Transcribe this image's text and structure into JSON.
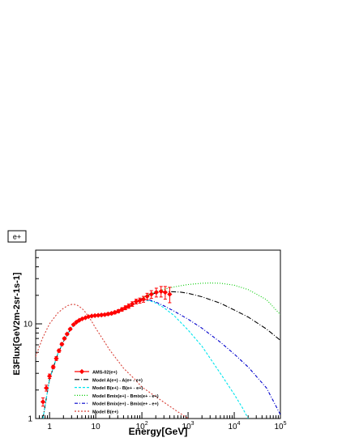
{
  "chart_data": {
    "type": "line",
    "title": "e+",
    "xlabel": "Energy[GeV]",
    "ylabel": "E3Flux[GeV2m-2sr-1s-1]",
    "xscale": "log",
    "yscale": "log",
    "xlim": [
      0.5,
      100000
    ],
    "ylim": [
      1,
      60
    ],
    "grid": false,
    "legend_position": "bottom-center",
    "x_ticks": [
      "1",
      "10",
      "10^2",
      "10^3",
      "10^4",
      "10^5"
    ],
    "y_ticks": [
      "1",
      "10"
    ],
    "colors": {
      "data": "#ff0000",
      "model_a": "#000000",
      "model_b": "#00e5ee",
      "model_bmix": "#00cc00",
      "model_bmix_ee": "#0000cc",
      "model_b_epos": "#d9433a"
    },
    "series": [
      {
        "name": "AMS-02(e+)",
        "kind": "data",
        "x": [
          0.72,
          0.85,
          1.0,
          1.2,
          1.4,
          1.6,
          1.85,
          2.1,
          2.4,
          2.8,
          3.3,
          3.8,
          4.4,
          5.1,
          6.0,
          7.0,
          8.2,
          9.6,
          11.3,
          13.3,
          15.7,
          18.5,
          22.0,
          26.0,
          31.0,
          37.0,
          44.0,
          52.0,
          62.0,
          75.0,
          90.0,
          108.0,
          130.0,
          160.0,
          205.0,
          260.0,
          320.0,
          400.0
        ],
        "y": [
          1.5,
          2.1,
          2.8,
          3.5,
          4.3,
          5.2,
          6.1,
          7.0,
          7.8,
          8.8,
          9.8,
          10.4,
          10.9,
          11.3,
          11.6,
          11.9,
          12.1,
          12.2,
          12.3,
          12.4,
          12.5,
          12.7,
          12.9,
          13.2,
          13.6,
          14.2,
          14.8,
          15.4,
          16.2,
          17.2,
          17.6,
          18.2,
          19.5,
          20.5,
          21.5,
          22.0,
          21.5,
          20.5
        ],
        "yerr": [
          0.15,
          0.15,
          0.15,
          0.15,
          0.2,
          0.2,
          0.2,
          0.2,
          0.2,
          0.2,
          0.2,
          0.2,
          0.2,
          0.2,
          0.2,
          0.2,
          0.2,
          0.25,
          0.25,
          0.3,
          0.3,
          0.35,
          0.4,
          0.45,
          0.5,
          0.6,
          0.7,
          0.8,
          0.9,
          1.0,
          1.1,
          1.3,
          1.5,
          1.9,
          2.3,
          2.8,
          3.3,
          3.8
        ]
      },
      {
        "name": "Model A(e+) - A(e+ - e+)",
        "kind": "line",
        "dash": "dashdot",
        "x": [
          0.72,
          1.0,
          1.5,
          2.0,
          3.0,
          4.0,
          6.0,
          10.0,
          20.0,
          40.0,
          70.0,
          100.0,
          150.0,
          250.0,
          400.0,
          700.0,
          1000.0,
          2000.0,
          5000.0,
          10000.0,
          20000.0,
          50000.0,
          100000.0
        ],
        "y": [
          1.0,
          2.6,
          4.8,
          6.5,
          9.2,
          10.6,
          11.7,
          12.3,
          12.7,
          14.0,
          16.3,
          18.5,
          20.5,
          21.6,
          21.9,
          21.6,
          21.0,
          19.3,
          16.5,
          14.0,
          11.8,
          8.8,
          6.7
        ]
      },
      {
        "name": "Model B(e+) - B(e+ - e+)",
        "kind": "line",
        "dash": "dash",
        "x": [
          0.72,
          1.0,
          1.5,
          2.0,
          3.0,
          4.0,
          6.0,
          10.0,
          20.0,
          40.0,
          70.0,
          100.0,
          150.0,
          200.0,
          300.0,
          500.0,
          1000.0,
          2000.0,
          5000.0,
          10000.0,
          15000.0,
          20000.0
        ],
        "y": [
          1.0,
          2.6,
          4.8,
          6.5,
          9.2,
          10.6,
          11.7,
          12.3,
          12.7,
          14.0,
          16.3,
          17.8,
          17.5,
          16.6,
          14.8,
          12.2,
          8.6,
          5.8,
          3.0,
          1.8,
          1.3,
          1.0
        ]
      },
      {
        "name": "Model Bmix(e+) - Bmix(e+ - e+)",
        "kind": "line",
        "dash": "dot",
        "x": [
          100.0,
          150.0,
          250.0,
          400.0,
          700.0,
          1000.0,
          2000.0,
          3000.0,
          5000.0,
          10000.0,
          20000.0,
          50000.0,
          100000.0
        ],
        "y": [
          18.5,
          20.7,
          22.5,
          24.0,
          25.3,
          26.0,
          26.8,
          27.0,
          26.8,
          25.6,
          23.0,
          18.0,
          12.5
        ]
      },
      {
        "name": "Model Bmix(e+) - Bmix(e+ - e+)",
        "kind": "line",
        "dash": "dashdot2",
        "x": [
          100.0,
          150.0,
          200.0,
          300.0,
          500.0,
          1000.0,
          2000.0,
          5000.0,
          10000.0,
          20000.0,
          50000.0,
          100000.0
        ],
        "y": [
          17.8,
          17.8,
          17.0,
          15.5,
          13.6,
          11.2,
          9.0,
          6.4,
          4.8,
          3.5,
          2.1,
          1.1
        ]
      },
      {
        "name": "Model B(e+)",
        "kind": "line",
        "dash": "shortdash",
        "x": [
          0.5,
          0.7,
          1.0,
          1.5,
          2.0,
          2.5,
          3.0,
          3.5,
          4.0,
          5.0,
          6.0,
          8.0,
          10.0,
          15.0,
          20.0,
          40.0,
          70.0,
          100.0,
          200.0,
          400.0,
          700.0,
          1000.0
        ],
        "y": [
          4.5,
          7.0,
          10.0,
          13.0,
          14.6,
          15.6,
          16.0,
          16.0,
          15.7,
          14.6,
          13.2,
          10.8,
          9.0,
          6.6,
          5.3,
          3.4,
          2.6,
          2.15,
          1.7,
          1.35,
          1.12,
          1.0
        ]
      }
    ]
  }
}
